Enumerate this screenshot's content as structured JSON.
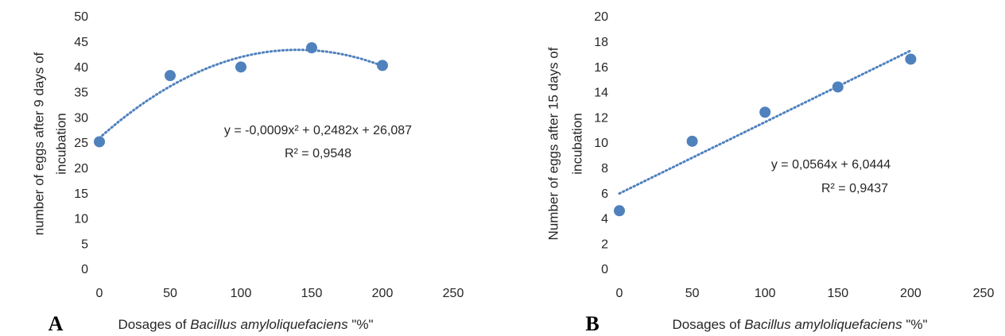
{
  "chart_data": [
    {
      "type": "scatter",
      "panel": "A",
      "x_label": {
        "text": "Dosages of ",
        "species": "Bacillus amyloliquefaciens",
        "unit": " \"%\""
      },
      "y_label": [
        "number of eggs after 9 days of",
        "incubation"
      ],
      "x": [
        0,
        50,
        100,
        150,
        200
      ],
      "values": [
        25.4,
        38.5,
        40.2,
        44,
        40.5
      ],
      "color": "#4f81bd",
      "xlim": [
        0,
        250
      ],
      "xticks": [
        0,
        50,
        100,
        150,
        200,
        250
      ],
      "ylim": [
        0,
        50
      ],
      "yticks": [
        0,
        5,
        10,
        15,
        20,
        25,
        30,
        35,
        40,
        45,
        50
      ],
      "trendline_order": 2,
      "equation": "y = -0,0009x² + 0,2482x + 26,087",
      "r_squared": "R² = 0,9548"
    },
    {
      "type": "scatter",
      "panel": "B",
      "x_label": {
        "text": "Dosages of ",
        "species": "Bacillus amyloliquefaciens",
        "unit": " \"%\""
      },
      "y_label": [
        "Number of eggs after 15 days of",
        "incubation"
      ],
      "x": [
        0,
        50,
        100,
        150,
        200
      ],
      "values": [
        4.7,
        10.2,
        12.5,
        14.5,
        16.7
      ],
      "color": "#4f81bd",
      "xlim": [
        0,
        250
      ],
      "xticks": [
        0,
        50,
        100,
        150,
        200,
        250
      ],
      "ylim": [
        0,
        20
      ],
      "yticks": [
        0,
        2,
        4,
        6,
        8,
        10,
        12,
        14,
        16,
        18,
        20
      ],
      "trendline_order": 1,
      "equation": "y = 0,0564x + 6,0444",
      "r_squared": "R² = 0,9437"
    }
  ]
}
